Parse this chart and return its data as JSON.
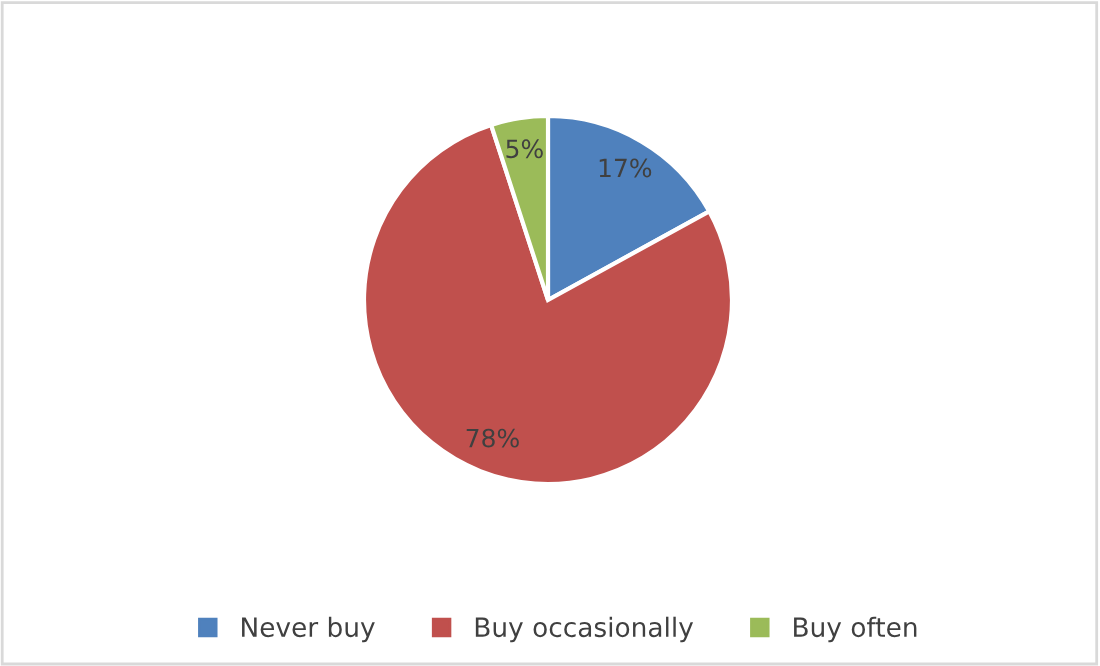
{
  "chart_data": {
    "type": "pie",
    "categories": [
      "Never buy",
      "Buy occasionally",
      "Buy often"
    ],
    "values": [
      17,
      78,
      5
    ],
    "colors": [
      "#4f81bd",
      "#c0504d",
      "#9bbb59"
    ],
    "value_labels": [
      "17%",
      "78%",
      "5%"
    ],
    "legend": "bottom"
  }
}
